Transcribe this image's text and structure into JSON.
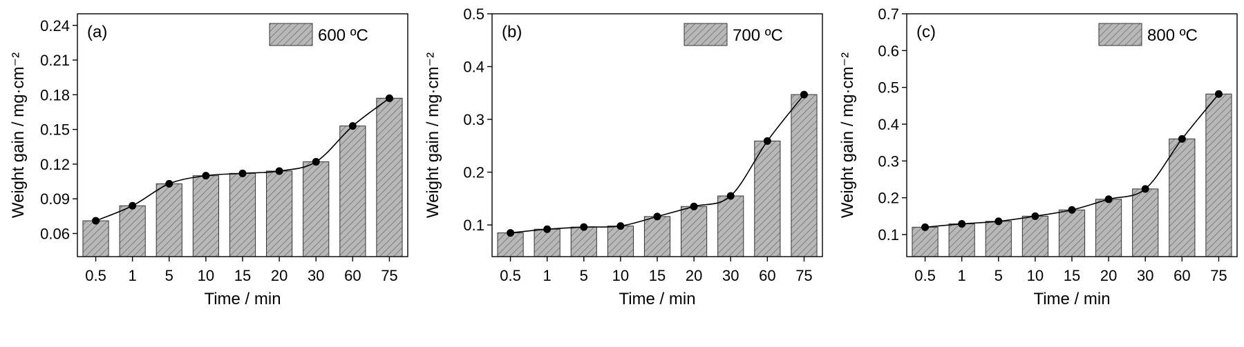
{
  "chart_data": [
    {
      "type": "bar",
      "panel_label": "(a)",
      "legend": "600 ºC",
      "categories": [
        "0.5",
        "1",
        "5",
        "10",
        "15",
        "20",
        "30",
        "60",
        "75"
      ],
      "values": [
        0.071,
        0.084,
        0.103,
        0.11,
        0.112,
        0.114,
        0.122,
        0.153,
        0.177
      ],
      "xlabel": "Time / min",
      "ylabel": "Weight gain / mg·cm⁻²",
      "ylim": [
        0.04,
        0.25
      ],
      "yticks": [
        "0.06",
        "0.09",
        "0.12",
        "0.15",
        "0.18",
        "0.21",
        "0.24"
      ],
      "bar_color": "#b8b8b8"
    },
    {
      "type": "bar",
      "panel_label": "(b)",
      "legend": "700 ºC",
      "categories": [
        "0.5",
        "1",
        "5",
        "10",
        "15",
        "20",
        "30",
        "60",
        "75"
      ],
      "values": [
        0.085,
        0.092,
        0.096,
        0.098,
        0.116,
        0.135,
        0.155,
        0.259,
        0.347
      ],
      "xlabel": "Time / min",
      "ylabel": "Weight gain / mg·cm⁻²",
      "ylim": [
        0.04,
        0.5
      ],
      "yticks": [
        "0.1",
        "0.2",
        "0.3",
        "0.4",
        "0.5"
      ],
      "bar_color": "#b8b8b8"
    },
    {
      "type": "bar",
      "panel_label": "(c)",
      "legend": "800 ºC",
      "categories": [
        "0.5",
        "1",
        "5",
        "10",
        "15",
        "20",
        "30",
        "60",
        "75"
      ],
      "values": [
        0.12,
        0.129,
        0.136,
        0.15,
        0.167,
        0.196,
        0.224,
        0.36,
        0.482
      ],
      "xlabel": "Time / min",
      "ylabel": "Weight gain / mg·cm⁻²",
      "ylim": [
        0.04,
        0.7
      ],
      "yticks": [
        "0.1",
        "0.2",
        "0.3",
        "0.4",
        "0.5",
        "0.6",
        "0.7"
      ],
      "bar_color": "#b8b8b8"
    }
  ]
}
